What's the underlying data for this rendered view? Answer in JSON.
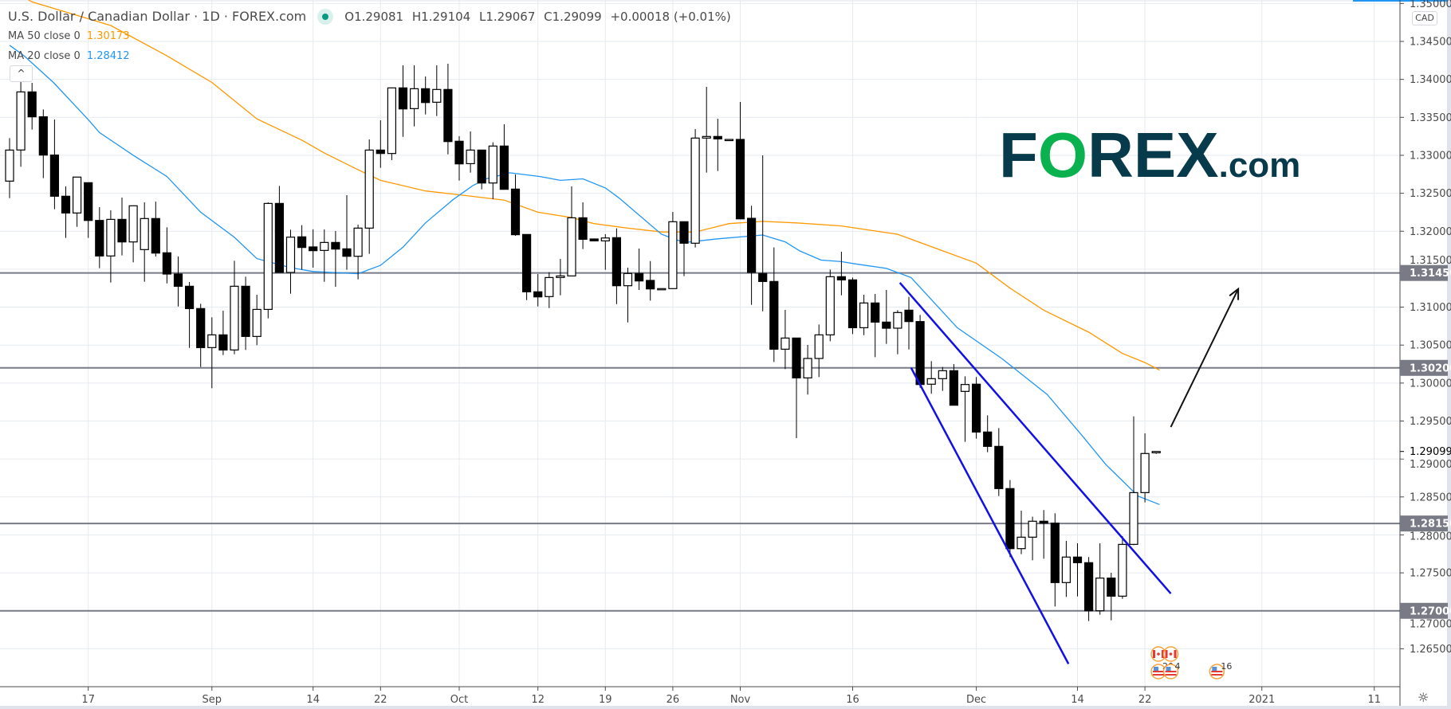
{
  "header": {
    "title": "U.S. Dollar / Canadian Dollar · 1D · FOREX.com",
    "market_status_color": "#089981",
    "open": "O1.29081",
    "high": "H1.29104",
    "low": "L1.29067",
    "close": "C1.29099",
    "change": "+0.00018 (+0.01%)"
  },
  "indicators": [
    {
      "label": "MA 50 close 0",
      "value": "1.30173",
      "color": "#ff9800"
    },
    {
      "label": "MA 20 close 0",
      "value": "1.28412",
      "color": "#2196f3"
    }
  ],
  "collapse_icon": "chevron-up-icon",
  "collapse_glyph": "^",
  "currency_label": "CAD",
  "settings_icon": "gear-icon",
  "logo": {
    "part1": "F",
    "part2": "O",
    "part3": "REX",
    "part4": ".com",
    "dark_color": "#073b4c",
    "green_color": "#0ab24f"
  },
  "chart_data": {
    "type": "candlestick",
    "title": "U.S. Dollar / Canadian Dollar · 1D · FOREX.com",
    "y_range": [
      1.2605,
      1.3505
    ],
    "y_ticks": [
      "1.26500",
      "1.27000",
      "1.27500",
      "1.28000",
      "1.28500",
      "1.29000",
      "1.29500",
      "1.30000",
      "1.30500",
      "1.31000",
      "1.31500",
      "1.32000",
      "1.32500",
      "1.33000",
      "1.33500",
      "1.34000",
      "1.34500",
      "1.35000"
    ],
    "x_ticks": [
      {
        "label": "17",
        "bar": 7
      },
      {
        "label": "Sep",
        "bar": 18
      },
      {
        "label": "14",
        "bar": 27
      },
      {
        "label": "22",
        "bar": 33
      },
      {
        "label": "Oct",
        "bar": 40
      },
      {
        "label": "12",
        "bar": 47
      },
      {
        "label": "19",
        "bar": 53
      },
      {
        "label": "26",
        "bar": 59
      },
      {
        "label": "Nov",
        "bar": 65
      },
      {
        "label": "16",
        "bar": 75
      },
      {
        "label": "Dec",
        "bar": 86
      },
      {
        "label": "14",
        "bar": 95
      },
      {
        "label": "22",
        "bar": 101
      },
      {
        "label": "2021",
        "bar": 111.4
      },
      {
        "label": "11",
        "bar": 121.4
      }
    ],
    "grid": true,
    "candles_ohlc": [
      [
        1.3266,
        1.33227,
        1.32436,
        1.33069
      ],
      [
        1.3307,
        1.33986,
        1.32849,
        1.33835
      ],
      [
        1.33835,
        1.33954,
        1.33339,
        1.33507
      ],
      [
        1.33507,
        1.33604,
        1.32699,
        1.33003
      ],
      [
        1.33003,
        1.33472,
        1.3229,
        1.32461
      ],
      [
        1.32461,
        1.3259,
        1.31912,
        1.3224
      ],
      [
        1.3224,
        1.32713,
        1.32058,
        1.32713
      ],
      [
        1.32639,
        1.32639,
        1.31912,
        1.32142
      ],
      [
        1.32142,
        1.32317,
        1.31513,
        1.31674
      ],
      [
        1.31674,
        1.32275,
        1.31324,
        1.32156
      ],
      [
        1.32156,
        1.32443,
        1.31681,
        1.31859
      ],
      [
        1.31859,
        1.32335,
        1.3159,
        1.32335
      ],
      [
        1.31758,
        1.3238,
        1.31334,
        1.32167
      ],
      [
        1.32167,
        1.3239,
        1.31667,
        1.31712
      ],
      [
        1.31716,
        1.32051,
        1.31313,
        1.31436
      ],
      [
        1.31436,
        1.31667,
        1.31009,
        1.31275
      ],
      [
        1.31275,
        1.31331,
        1.30463,
        1.30981
      ],
      [
        1.30981,
        1.31044,
        1.30212,
        1.30467
      ],
      [
        1.30467,
        1.30866,
        1.29932,
        1.30635
      ],
      [
        1.30635,
        1.30953,
        1.30369,
        1.30436
      ],
      [
        1.30436,
        1.31611,
        1.3038,
        1.31275
      ],
      [
        1.31275,
        1.31401,
        1.30436,
        1.30614
      ],
      [
        1.30614,
        1.31163,
        1.30499,
        1.3097
      ],
      [
        1.3097,
        1.3238,
        1.30852,
        1.32366
      ],
      [
        1.32366,
        1.32597,
        1.31457,
        1.31457
      ],
      [
        1.31457,
        1.3202,
        1.31177,
        1.31922
      ],
      [
        1.31926,
        1.3208,
        1.31495,
        1.31786
      ],
      [
        1.31793,
        1.32025,
        1.3152,
        1.31744
      ],
      [
        1.31747,
        1.32024,
        1.31334,
        1.31852
      ],
      [
        1.31852,
        1.32003,
        1.31268,
        1.31765
      ],
      [
        1.31768,
        1.32475,
        1.31492,
        1.3167
      ],
      [
        1.3167,
        1.32087,
        1.31366,
        1.32041
      ],
      [
        1.32041,
        1.33209,
        1.31702,
        1.33069
      ],
      [
        1.33069,
        1.33461,
        1.32835,
        1.33024
      ],
      [
        1.33024,
        1.33888,
        1.32936,
        1.33888
      ],
      [
        1.33888,
        1.34185,
        1.33244,
        1.33611
      ],
      [
        1.33615,
        1.34185,
        1.33381,
        1.33877
      ],
      [
        1.33877,
        1.34038,
        1.33538,
        1.33695
      ],
      [
        1.33699,
        1.34185,
        1.33517,
        1.33867
      ],
      [
        1.33867,
        1.34206,
        1.33013,
        1.33181
      ],
      [
        1.33185,
        1.33251,
        1.32667,
        1.32887
      ],
      [
        1.3289,
        1.33314,
        1.32772,
        1.33069
      ],
      [
        1.33069,
        1.33069,
        1.32552,
        1.32635
      ],
      [
        1.32635,
        1.33171,
        1.32422,
        1.33122
      ],
      [
        1.33122,
        1.33409,
        1.32552,
        1.32552
      ],
      [
        1.32555,
        1.32747,
        1.3194,
        1.31954
      ],
      [
        1.31957,
        1.31957,
        1.31093,
        1.31202
      ],
      [
        1.31202,
        1.31436,
        1.31009,
        1.31135
      ],
      [
        1.31139,
        1.3146,
        1.30988,
        1.3139
      ],
      [
        1.3139,
        1.31635,
        1.31156,
        1.31411
      ],
      [
        1.31411,
        1.3259,
        1.31411,
        1.32177
      ],
      [
        1.32177,
        1.3238,
        1.31765,
        1.31894
      ],
      [
        1.31898,
        1.31898,
        1.31873,
        1.31873
      ],
      [
        1.31873,
        1.31961,
        1.31492,
        1.31911
      ],
      [
        1.31915,
        1.32038,
        1.3104,
        1.31282
      ],
      [
        1.31282,
        1.3152,
        1.30799,
        1.31443
      ],
      [
        1.31443,
        1.31772,
        1.31226,
        1.31345
      ],
      [
        1.31352,
        1.31607,
        1.31086,
        1.3124
      ],
      [
        1.31244,
        1.31244,
        1.31244,
        1.31244
      ],
      [
        1.31244,
        1.32254,
        1.31244,
        1.32125
      ],
      [
        1.32125,
        1.32125,
        1.31408,
        1.31842
      ],
      [
        1.31842,
        1.33346,
        1.31786,
        1.33227
      ],
      [
        1.33227,
        1.33902,
        1.32772,
        1.33248
      ],
      [
        1.33248,
        1.33482,
        1.32793,
        1.33216
      ],
      [
        1.33209,
        1.33209,
        1.33209,
        1.33209
      ],
      [
        1.33209,
        1.33702,
        1.32163,
        1.32163
      ],
      [
        1.3217,
        1.32335,
        1.3103,
        1.31457
      ],
      [
        1.31443,
        1.32999,
        1.30946,
        1.31338
      ],
      [
        1.31338,
        1.31786,
        1.30278,
        1.30446
      ],
      [
        1.30446,
        1.30964,
        1.30184,
        1.30593
      ],
      [
        1.30593,
        1.30593,
        1.29274,
        1.30068
      ],
      [
        1.30068,
        1.30502,
        1.29848,
        1.30324
      ],
      [
        1.30324,
        1.30771,
        1.30079,
        1.30635
      ],
      [
        1.30635,
        1.31495,
        1.30551,
        1.31401
      ],
      [
        1.31401,
        1.3173,
        1.31156,
        1.31359
      ],
      [
        1.31359,
        1.3139,
        1.30645,
        1.30729
      ],
      [
        1.30729,
        1.31163,
        1.30631,
        1.31055
      ],
      [
        1.31055,
        1.31174,
        1.30341,
        1.30803
      ],
      [
        1.30803,
        1.31226,
        1.30516,
        1.30722
      ],
      [
        1.30723,
        1.3096,
        1.3038,
        1.30929
      ],
      [
        1.3096,
        1.31135,
        1.30443,
        1.3081
      ],
      [
        1.3081,
        1.30897,
        1.29939,
        1.29981
      ],
      [
        1.29985,
        1.30289,
        1.29859,
        1.30058
      ],
      [
        1.30058,
        1.30212,
        1.29897,
        1.30163
      ],
      [
        1.30163,
        1.3025,
        1.29708,
        1.29708
      ],
      [
        1.2989,
        1.30089,
        1.29226,
        1.29981
      ],
      [
        1.29985,
        1.30079,
        1.29268,
        1.29355
      ],
      [
        1.29355,
        1.29575,
        1.29089,
        1.29166
      ],
      [
        1.29166,
        1.29407,
        1.28512,
        1.2861
      ],
      [
        1.2861,
        1.28722,
        1.27708,
        1.27819
      ],
      [
        1.27819,
        1.2832,
        1.27746,
        1.2797
      ],
      [
        1.2797,
        1.2824,
        1.27666,
        1.2818
      ],
      [
        1.2818,
        1.28327,
        1.27687,
        1.28155
      ],
      [
        1.28155,
        1.28285,
        1.27057,
        1.27372
      ],
      [
        1.27372,
        1.27921,
        1.27183,
        1.27708
      ],
      [
        1.27708,
        1.27889,
        1.2719,
        1.27634
      ],
      [
        1.27634,
        1.27708,
        1.26865,
        1.27001
      ],
      [
        1.27001,
        1.27889,
        1.26949,
        1.27431
      ],
      [
        1.27431,
        1.27501,
        1.26875,
        1.27193
      ],
      [
        1.27193,
        1.27984,
        1.27158,
        1.27875
      ],
      [
        1.27875,
        1.29561,
        1.27865,
        1.28557
      ],
      [
        1.28557,
        1.29338,
        1.28428,
        1.29072
      ],
      [
        1.29081,
        1.29104,
        1.29067,
        1.29099
      ]
    ],
    "colors": {
      "up_fill": "#ffffff",
      "down_fill": "#000000",
      "wick": "#000000"
    },
    "moving_averages": [
      {
        "name": "MA 50 close 0",
        "color": "#ff9800",
        "points": [
          [
            0,
            1.352
          ],
          [
            2,
            1.3502
          ],
          [
            9,
            1.3471
          ],
          [
            14,
            1.3431
          ],
          [
            18,
            1.3396
          ],
          [
            22,
            1.3348
          ],
          [
            26,
            1.332
          ],
          [
            28,
            1.3303
          ],
          [
            31,
            1.3281
          ],
          [
            33,
            1.3267
          ],
          [
            37,
            1.3253
          ],
          [
            40,
            1.3248
          ],
          [
            44,
            1.3241
          ],
          [
            47,
            1.3225
          ],
          [
            50,
            1.3218
          ],
          [
            52,
            1.321
          ],
          [
            55,
            1.3204
          ],
          [
            58,
            1.3199
          ],
          [
            61,
            1.3199
          ],
          [
            64,
            1.321
          ],
          [
            67,
            1.3213
          ],
          [
            70,
            1.3211
          ],
          [
            74,
            1.3207
          ],
          [
            79,
            1.3196
          ],
          [
            86,
            1.3158
          ],
          [
            89,
            1.3125
          ],
          [
            92,
            1.3096
          ],
          [
            96,
            1.3067
          ],
          [
            99,
            1.3039
          ],
          [
            101,
            1.3027
          ],
          [
            102.3,
            1.3017
          ]
        ]
      },
      {
        "name": "MA 20 close 0",
        "color": "#2196f3",
        "points": [
          [
            0,
            1.3445
          ],
          [
            1.3,
            1.3431
          ],
          [
            3.9,
            1.3396
          ],
          [
            7,
            1.3347
          ],
          [
            8,
            1.333
          ],
          [
            11,
            1.33
          ],
          [
            14,
            1.3272
          ],
          [
            17,
            1.3225
          ],
          [
            20,
            1.3192
          ],
          [
            22,
            1.3164
          ],
          [
            25,
            1.3152
          ],
          [
            27,
            1.3147
          ],
          [
            31,
            1.3144
          ],
          [
            33,
            1.3155
          ],
          [
            35,
            1.3179
          ],
          [
            37,
            1.3211
          ],
          [
            39.4,
            1.3241
          ],
          [
            41.2,
            1.326
          ],
          [
            42.4,
            1.3269
          ],
          [
            44.5,
            1.3277
          ],
          [
            47.2,
            1.3272
          ],
          [
            49,
            1.3267
          ],
          [
            51,
            1.3269
          ],
          [
            53,
            1.3257
          ],
          [
            54.2,
            1.3244
          ],
          [
            58,
            1.3196
          ],
          [
            60,
            1.3185
          ],
          [
            63,
            1.319
          ],
          [
            67,
            1.3195
          ],
          [
            69,
            1.3186
          ],
          [
            70.3,
            1.3174
          ],
          [
            72.2,
            1.3162
          ],
          [
            74,
            1.316
          ],
          [
            75.2,
            1.3157
          ],
          [
            78,
            1.3151
          ],
          [
            80.2,
            1.3139
          ],
          [
            84.3,
            1.3073
          ],
          [
            88.3,
            1.3032
          ],
          [
            92.3,
            1.2985
          ],
          [
            95.4,
            1.2931
          ],
          [
            97.5,
            1.2893
          ],
          [
            100.4,
            1.2851
          ],
          [
            102.3,
            1.284
          ]
        ]
      }
    ],
    "horizontal_levels": [
      {
        "value": 1.3145,
        "label": "1.31450"
      },
      {
        "value": 1.302,
        "label": "1.30200"
      },
      {
        "value": 1.2815,
        "label": "1.28150"
      },
      {
        "value": 1.27,
        "label": "1.27000"
      }
    ],
    "level_color": "#787b86",
    "last_price": {
      "value": 1.29099,
      "label": "1.29099"
    },
    "trend_lines": [
      {
        "from": [
          79.2,
          1.31321
        ],
        "to": [
          103.3,
          1.27228
        ],
        "color": "#1010e8"
      },
      {
        "from": [
          80.2,
          1.30201
        ],
        "to": [
          94.2,
          1.26301
        ],
        "color": "#1010e8"
      }
    ],
    "arrow": {
      "from": [
        103.3,
        1.2942
      ],
      "to": [
        109.3,
        1.3124
      ],
      "color": "#111111"
    },
    "events": [
      {
        "bar": 102.2,
        "row": 0,
        "flag": "canada-flag-icon",
        "count": ""
      },
      {
        "bar": 103.3,
        "row": 0,
        "flag": "canada-flag-icon",
        "count": ""
      },
      {
        "bar": 102.2,
        "row": 1,
        "flag": "us-flag-icon",
        "count": "20"
      },
      {
        "bar": 103.3,
        "row": 1,
        "flag": "us-flag-icon",
        "count": "4"
      },
      {
        "bar": 107.4,
        "row": 1,
        "flag": "us-flag-icon",
        "count": "16"
      }
    ]
  }
}
